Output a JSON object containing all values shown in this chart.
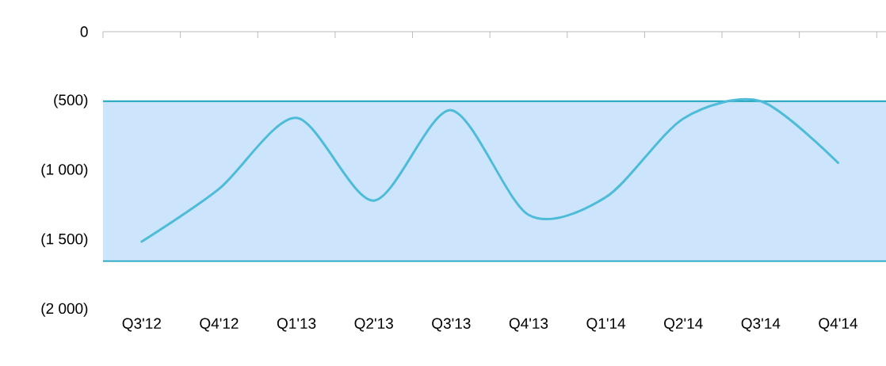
{
  "chart_data": {
    "type": "line",
    "categories": [
      "Q3'12",
      "Q4'12",
      "Q1'13",
      "Q2'13",
      "Q3'13",
      "Q4'13",
      "Q1'14",
      "Q2'14",
      "Q3'14",
      "Q4'14"
    ],
    "series": [
      {
        "color": "#4ebcd9",
        "values": [
          -1510,
          -1130,
          -620,
          -1215,
          -565,
          -1318,
          -1190,
          -625,
          -500,
          -943
        ]
      }
    ],
    "ylim": [
      -2000,
      0
    ],
    "yticks": [
      {
        "value": 0,
        "label": "0"
      },
      {
        "value": -500,
        "label": "(500)"
      },
      {
        "value": -1000,
        "label": "(1 000)"
      },
      {
        "value": -1500,
        "label": "(1 500)"
      },
      {
        "value": -2000,
        "label": "(2 000)"
      }
    ],
    "bands": [
      {
        "axis": "y",
        "from": -1650,
        "to": -500,
        "color": "#cce5fc"
      }
    ],
    "ref_lines": [
      {
        "axis": "y",
        "value": -500,
        "color": "#1aa3bd"
      },
      {
        "axis": "y",
        "value": -1650,
        "color": "#1aa3bd"
      }
    ],
    "grid": false,
    "marker": "none",
    "line_style": "solid"
  }
}
